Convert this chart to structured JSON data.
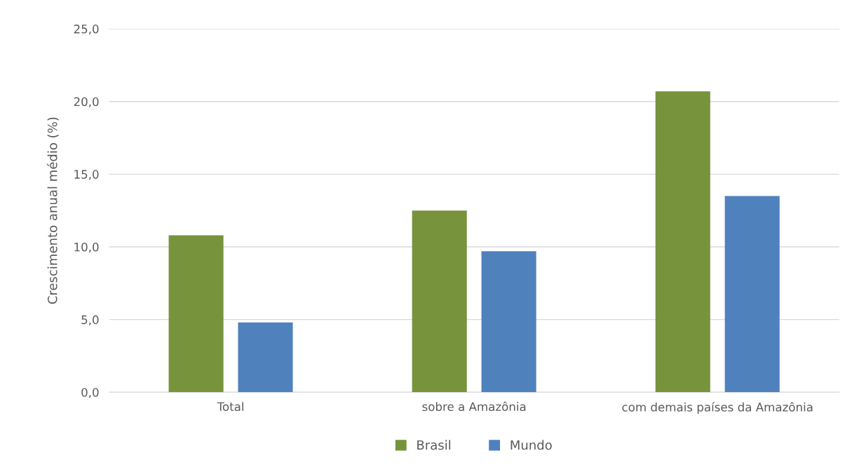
{
  "chart_data": {
    "type": "bar",
    "ylabel": "Crescimento anual médio (%)",
    "categories": [
      "Total",
      "sobre a Amazônia",
      "com demais países da Amazônia"
    ],
    "series": [
      {
        "name": "Brasil",
        "color": "#77933c",
        "values": [
          10.8,
          12.5,
          20.7
        ]
      },
      {
        "name": "Mundo",
        "color": "#4f81bd",
        "values": [
          4.8,
          9.7,
          13.5
        ]
      }
    ],
    "ylim": [
      0,
      25
    ],
    "yticks": [
      {
        "value": 0,
        "label": "0,0"
      },
      {
        "value": 5,
        "label": "5,0"
      },
      {
        "value": 10,
        "label": "10,0"
      },
      {
        "value": 15,
        "label": "15,0"
      },
      {
        "value": 20,
        "label": "20,0"
      },
      {
        "value": 25,
        "label": "25,0"
      }
    ],
    "grid": "y",
    "legend": "bottom"
  }
}
